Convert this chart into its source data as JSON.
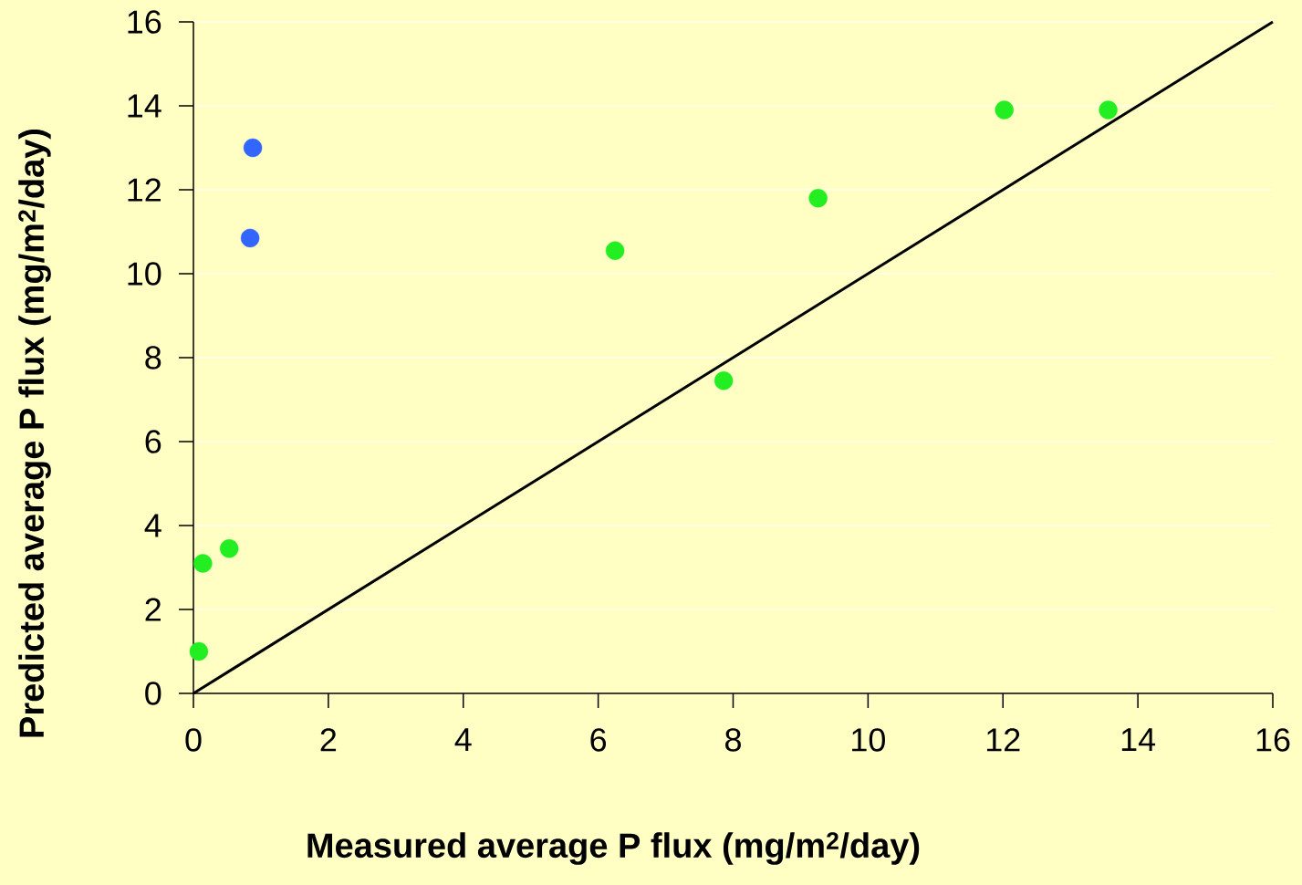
{
  "chart_data": {
    "type": "scatter",
    "xlabel": "Measured average P flux (mg/m$^{2}$/day)",
    "ylabel": "Predicted average P flux (mg/m$^{2}$/day)",
    "xlim": [
      0,
      16
    ],
    "ylim": [
      0,
      16
    ],
    "xticks": [
      0,
      2,
      4,
      6,
      8,
      10,
      12,
      14,
      16
    ],
    "yticks": [
      0,
      2,
      4,
      6,
      8,
      10,
      12,
      14,
      16
    ],
    "grid": "y",
    "marker": "circle",
    "series": [
      {
        "color": "#22ee22",
        "x": [
          0.08,
          0.14,
          0.53,
          6.25,
          7.86,
          9.26,
          12.02,
          13.56
        ],
        "values": [
          1.0,
          3.1,
          3.45,
          10.55,
          7.45,
          11.8,
          13.9,
          13.9
        ]
      },
      {
        "color": "#3366ff",
        "x": [
          0.88,
          0.84
        ],
        "values": [
          13.0,
          10.85
        ]
      },
      {
        "type": "line",
        "color": "#000000",
        "marker": "none",
        "line_style": "solid",
        "x": [
          0,
          16
        ],
        "values": [
          0,
          16
        ]
      }
    ]
  }
}
